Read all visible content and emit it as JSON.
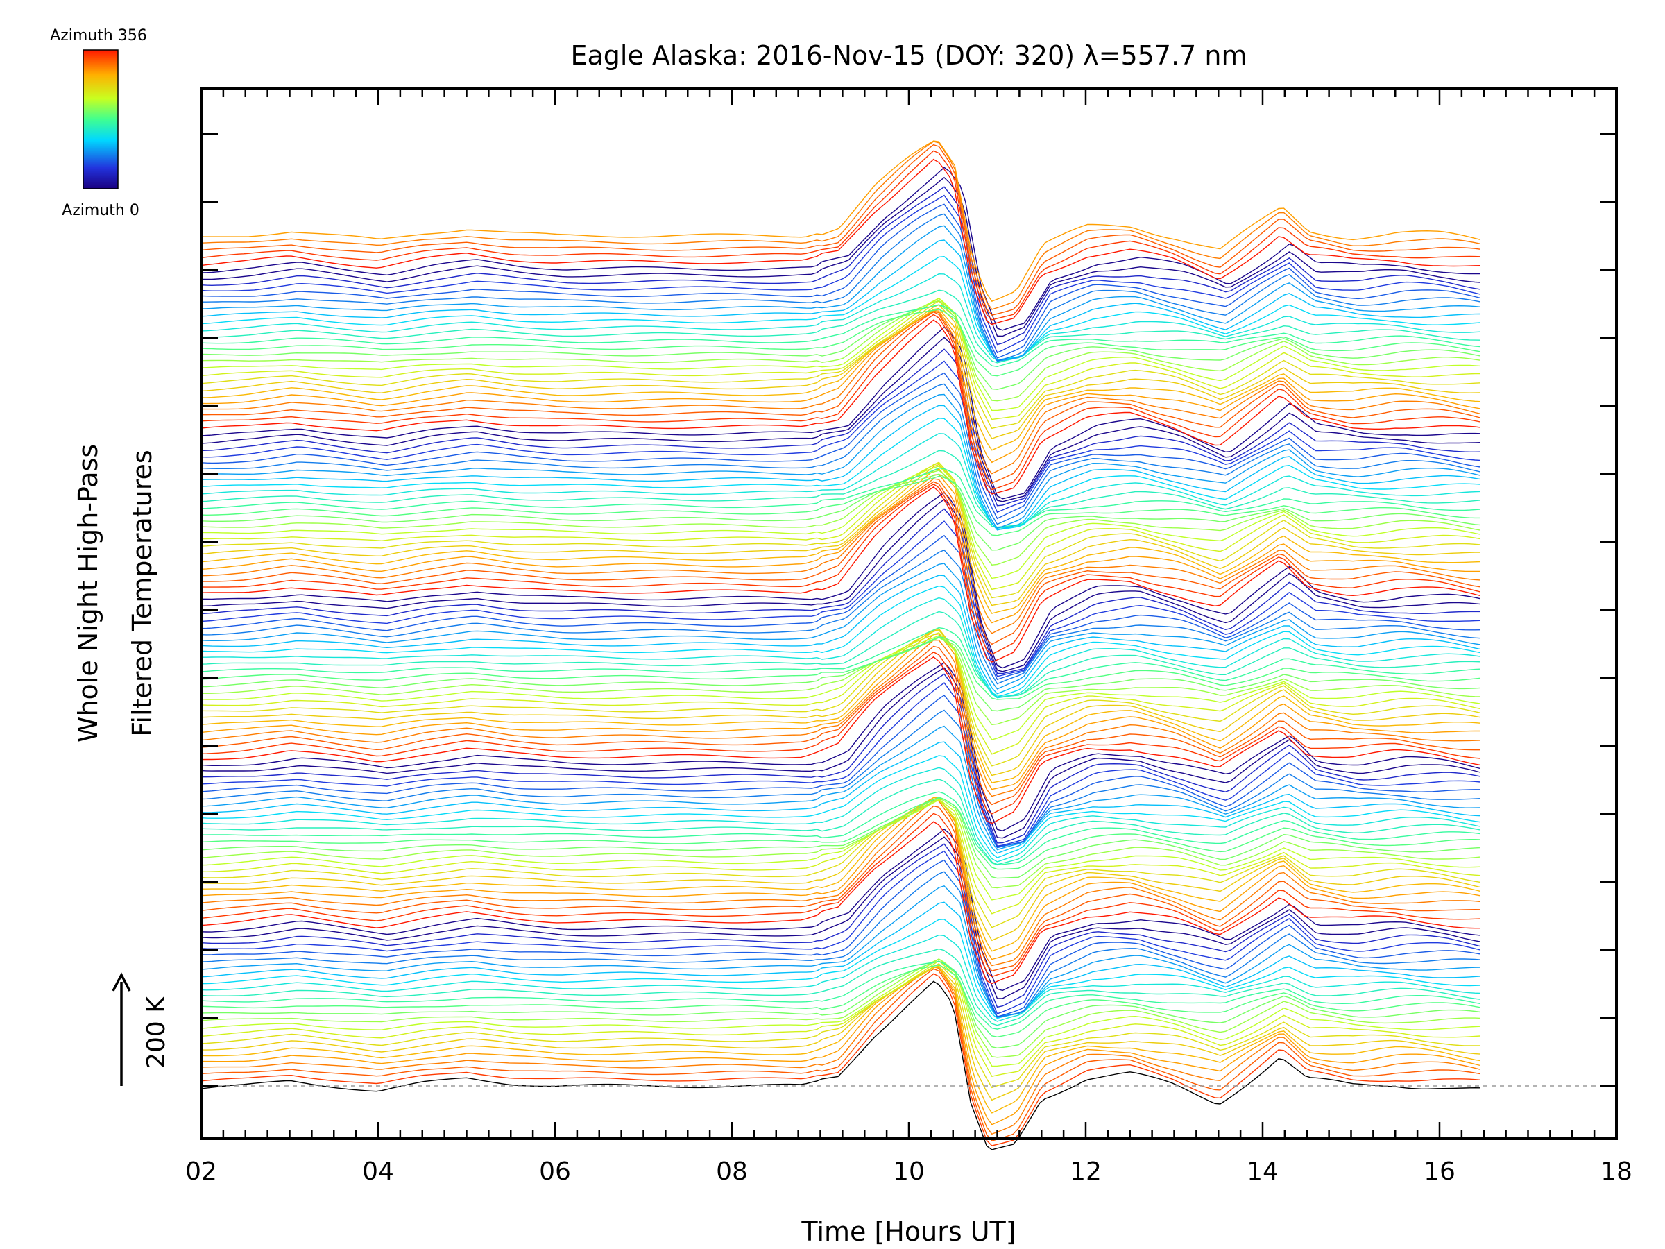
{
  "title": "Eagle Alaska: 2016-Nov-15 (DOY: 320) λ=557.7 nm",
  "colorbar": {
    "top_label": "Azimuth 356",
    "bottom_label": "Azimuth 0"
  },
  "scale_label": "200 K",
  "chart_data": {
    "type": "line",
    "title": "Eagle Alaska: 2016-Nov-15 (DOY: 320) λ=557.7 nm",
    "xlabel": "Time [Hours UT]",
    "ylabel_line1": "Whole Night High-Pass",
    "ylabel_line2": "Filtered Temperatures",
    "xlim": [
      2,
      18
    ],
    "x_ticks": [
      "02",
      "04",
      "06",
      "08",
      "10",
      "12",
      "14",
      "16",
      "18"
    ],
    "x_tick_values": [
      2,
      4,
      6,
      8,
      10,
      12,
      14,
      16,
      18
    ],
    "data_time_range": [
      2.0,
      16.5
    ],
    "series_count": 130,
    "azimuth_range": [
      0,
      356
    ],
    "scale_bar_K": 200,
    "colormap": "rainbow (blue = azimuth 0, red = azimuth 356)",
    "bottom_trace": {
      "name": "Azimuth 0",
      "x": [
        2.0,
        2.5,
        3.0,
        3.5,
        4.0,
        4.5,
        5.0,
        5.5,
        6.0,
        7.0,
        8.0,
        8.8,
        9.2,
        9.6,
        10.0,
        10.3,
        10.5,
        10.7,
        10.9,
        11.2,
        11.5,
        12.0,
        12.5,
        13.0,
        13.5,
        14.0,
        14.2,
        14.5,
        15.0,
        15.5,
        16.0,
        16.5
      ],
      "y_K": [
        -5,
        0,
        10,
        0,
        -10,
        5,
        15,
        5,
        0,
        0,
        0,
        0,
        20,
        100,
        160,
        200,
        150,
        -40,
        -130,
        -110,
        -20,
        15,
        20,
        0,
        -30,
        30,
        55,
        10,
        0,
        5,
        0,
        -10
      ]
    },
    "background": "#ffffff",
    "axis_color": "#000000",
    "baseline_style": "dashed grey"
  }
}
